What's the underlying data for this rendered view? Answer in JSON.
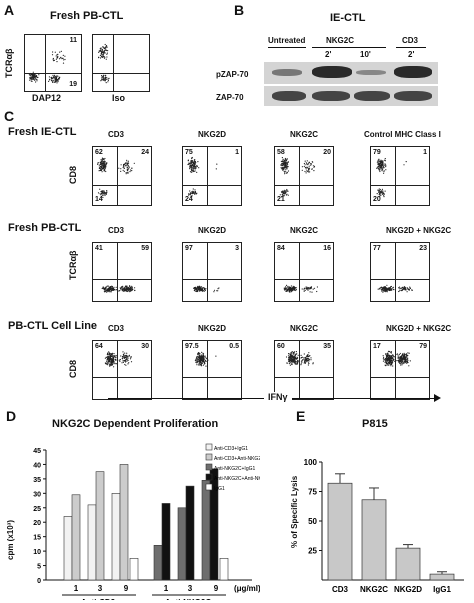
{
  "panelA": {
    "label": "A",
    "title": "Fresh PB-CTL",
    "ylabel": "TCRαβ",
    "plots": [
      {
        "xlabel": "DAP12",
        "q_ur": "11",
        "q_lr": "19"
      },
      {
        "xlabel": "Iso"
      }
    ]
  },
  "panelB": {
    "label": "B",
    "title": "IE-CTL",
    "groups": [
      "Untreated",
      "NKG2C",
      "CD3"
    ],
    "times": [
      "2'",
      "10'",
      "2'"
    ],
    "rows": [
      "pZAP-70",
      "ZAP-70"
    ]
  },
  "panelC": {
    "label": "C",
    "xaxis": "IFNγ",
    "rows": [
      {
        "title": "Fresh IE-CTL",
        "ylabel": "CD8",
        "plots": [
          {
            "title": "CD3",
            "ul": "62",
            "ur": "24",
            "ll": "14"
          },
          {
            "title": "NKG2D",
            "ul": "75",
            "ur": "1",
            "ll": "24"
          },
          {
            "title": "NKG2C",
            "ul": "58",
            "ur": "20",
            "ll": "21"
          },
          {
            "title": "Control MHC Class I",
            "ul": "79",
            "ur": "1",
            "ll": "20"
          }
        ]
      },
      {
        "title": "Fresh PB-CTL",
        "ylabel": "TCRαβ",
        "plots": [
          {
            "title": "CD3",
            "ul": "41",
            "ur": "59"
          },
          {
            "title": "NKG2D",
            "ul": "97",
            "ur": "3"
          },
          {
            "title": "NKG2C",
            "ul": "84",
            "ur": "16"
          },
          {
            "title": "NKG2D + NKG2C",
            "ul": "77",
            "ur": "23"
          }
        ]
      },
      {
        "title": "PB-CTL Cell Line",
        "ylabel": "CD8",
        "plots": [
          {
            "title": "CD3",
            "ul": "64",
            "ur": "30"
          },
          {
            "title": "NKG2D",
            "ul": "97.5",
            "ur": "0.5"
          },
          {
            "title": "NKG2C",
            "ul": "60",
            "ur": "35"
          },
          {
            "title": "NKG2D + NKG2C",
            "ul": "17",
            "ur": "79"
          }
        ]
      }
    ]
  },
  "panelD": {
    "label": "D",
    "ylabel": "cpm (x10³)",
    "unit": "(μg/ml)"
  },
  "panelE": {
    "label": "E",
    "ylabel": "% of Specific Lysis"
  },
  "chart_data": [
    {
      "type": "bar",
      "title": "NKG2C Dependent Proliferation",
      "ylabel": "cpm (x10³)",
      "ylim": [
        0,
        45
      ],
      "yticks": [
        0,
        5,
        10,
        15,
        20,
        25,
        30,
        35,
        40,
        45
      ],
      "groups": [
        {
          "label": "Anti-CD3",
          "ticks": [
            "1",
            "3",
            "9"
          ]
        },
        {
          "label": "Anti-NKG2C",
          "ticks": [
            "1",
            "3",
            "9"
          ]
        }
      ],
      "legend": [
        "Anti-CD3+IgG1",
        "Anti-CD3+Anti-NKG2D",
        "Anti-NKG2C+IgG1",
        "Anti-NKG2C+Anti-NKG2D",
        "IgG1"
      ],
      "series": [
        {
          "name": "Anti-CD3+IgG1",
          "color": "#f2f2f2",
          "values": [
            22,
            26,
            30,
            null,
            null,
            null
          ]
        },
        {
          "name": "Anti-CD3+Anti-NKG2D",
          "color": "#cccccc",
          "values": [
            29.5,
            37.5,
            40,
            null,
            null,
            null
          ]
        },
        {
          "name": "Anti-NKG2C+IgG1",
          "color": "#6e6e6e",
          "values": [
            null,
            null,
            null,
            12,
            25,
            34.5
          ]
        },
        {
          "name": "Anti-NKG2C+Anti-NKG2D",
          "color": "#111111",
          "values": [
            null,
            null,
            null,
            26.5,
            32.5,
            38.5
          ]
        },
        {
          "name": "IgG1",
          "color": "#ffffff",
          "values": [
            null,
            null,
            7.5,
            null,
            null,
            7.5
          ]
        }
      ]
    },
    {
      "type": "bar",
      "title": "P815",
      "ylabel": "% of Specific Lysis",
      "ylim": [
        0,
        100
      ],
      "yticks": [
        25,
        50,
        75,
        100
      ],
      "categories": [
        "CD3",
        "NKG2C",
        "NKG2D",
        "IgG1"
      ],
      "values": [
        82,
        68,
        27,
        5
      ],
      "errors": [
        8,
        10,
        3,
        2
      ],
      "color": "#c8c8c8"
    }
  ]
}
